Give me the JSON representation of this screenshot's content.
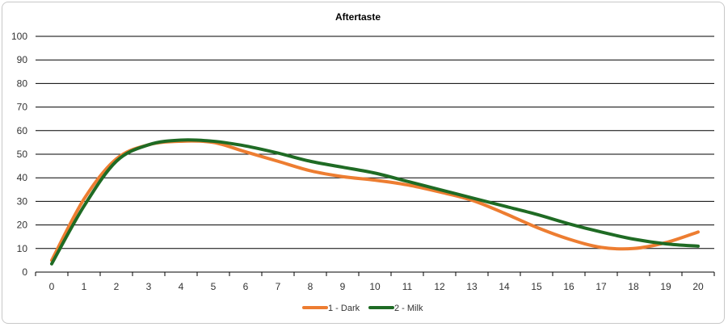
{
  "chart_data": {
    "type": "line",
    "title": "Aftertaste",
    "xlabel": "",
    "ylabel": "",
    "x": [
      0,
      1,
      2,
      3,
      4,
      5,
      6,
      7,
      8,
      9,
      10,
      11,
      12,
      13,
      14,
      15,
      16,
      17,
      18,
      19,
      20
    ],
    "ylim": [
      0,
      100
    ],
    "yticks": [
      0,
      10,
      20,
      30,
      40,
      50,
      60,
      70,
      80,
      90,
      100
    ],
    "grid": "horizontal",
    "legend_position": "bottom",
    "series": [
      {
        "name": "1 - Dark",
        "color": "#ed7d31",
        "values": [
          5,
          31,
          48,
          54,
          55.5,
          55,
          51,
          47,
          43,
          40.5,
          39,
          37,
          34,
          30.5,
          25,
          19,
          14,
          10.5,
          10,
          12.5,
          17
        ]
      },
      {
        "name": "2 - Milk",
        "color": "#1f6b24",
        "values": [
          3.5,
          28,
          47,
          54,
          56,
          55.5,
          53.5,
          50.5,
          47,
          44.5,
          42,
          38.5,
          35,
          31.5,
          28,
          24.5,
          20.5,
          17,
          14,
          12,
          11
        ]
      }
    ]
  }
}
